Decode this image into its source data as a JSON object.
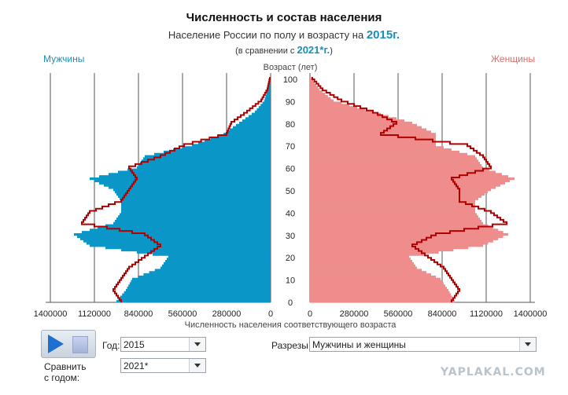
{
  "header": {
    "title": "Численность и состав населения",
    "subtitle_prefix": "Население России по полу и возрасту на",
    "subtitle_year": "2015г.",
    "compare_prefix": "(в сравнении с",
    "compare_year": "2021*г.",
    "compare_suffix": ")"
  },
  "labels": {
    "men": "Мужчины",
    "women": "Женщины"
  },
  "controls": {
    "year_label": "Год:",
    "year_value": "2015",
    "compare_label": "Сравнить с годом:",
    "compare_value": "2021*",
    "slice_label": "Разрезы:",
    "slice_value": "Мужчины и женщины"
  },
  "watermark": "YAPLAKAL.COM",
  "colors": {
    "men_fill": "#0a97c8",
    "women_fill": "#ef8d8d",
    "compare_outline": "#b00000"
  },
  "chart_data": {
    "type": "bar",
    "orientation": "horizontal",
    "layout": "population-pyramid",
    "ylabel": "Возраст (лет)",
    "xlabel": "Численность населения соответствующего возраста",
    "age_ticks": [
      0,
      10,
      20,
      30,
      40,
      50,
      60,
      70,
      80,
      90,
      100
    ],
    "men_axis_ticks": [
      "1400000",
      "1120000",
      "840000",
      "560000",
      "280000",
      "0"
    ],
    "women_axis_ticks": [
      "0",
      "280000",
      "560000",
      "840000",
      "1120000",
      "1400000"
    ],
    "xlim": [
      0,
      1400000
    ],
    "ylim": [
      0,
      100
    ],
    "grid": true,
    "series": [
      {
        "name": "Мужчины",
        "ages": [
          0,
          5,
          10,
          15,
          20,
          25,
          30,
          35,
          40,
          45,
          50,
          55,
          60,
          65,
          70,
          75,
          80,
          85,
          90,
          95,
          100
        ],
        "values": [
          980000,
          920000,
          880000,
          700000,
          650000,
          1150000,
          1250000,
          1000000,
          950000,
          950000,
          1000000,
          1150000,
          850000,
          800000,
          500000,
          300000,
          200000,
          100000,
          40000,
          20000,
          5000
        ]
      },
      {
        "name": "Женщины",
        "ages": [
          0,
          5,
          10,
          15,
          20,
          25,
          30,
          35,
          40,
          45,
          50,
          55,
          60,
          65,
          70,
          75,
          80,
          85,
          90,
          95,
          100
        ],
        "values": [
          920000,
          880000,
          830000,
          680000,
          630000,
          1100000,
          1260000,
          1100000,
          1050000,
          1050000,
          1150000,
          1300000,
          1100000,
          1050000,
          800000,
          800000,
          650000,
          400000,
          150000,
          60000,
          10000
        ]
      },
      {
        "name": "2021*",
        "ages": [
          0,
          5,
          10,
          15,
          20,
          25,
          30,
          35,
          40,
          45,
          50,
          55,
          60,
          65,
          70,
          75,
          80,
          85,
          90,
          95,
          100
        ],
        "men_values": [
          950000,
          1000000,
          950000,
          900000,
          800000,
          700000,
          800000,
          1200000,
          1150000,
          950000,
          900000,
          850000,
          900000,
          700000,
          550000,
          280000,
          250000,
          150000,
          60000,
          20000,
          5000
        ],
        "women_values": [
          900000,
          950000,
          900000,
          850000,
          750000,
          650000,
          800000,
          1250000,
          1150000,
          950000,
          950000,
          900000,
          1150000,
          1100000,
          1000000,
          450000,
          550000,
          400000,
          200000,
          80000,
          15000
        ]
      }
    ]
  }
}
